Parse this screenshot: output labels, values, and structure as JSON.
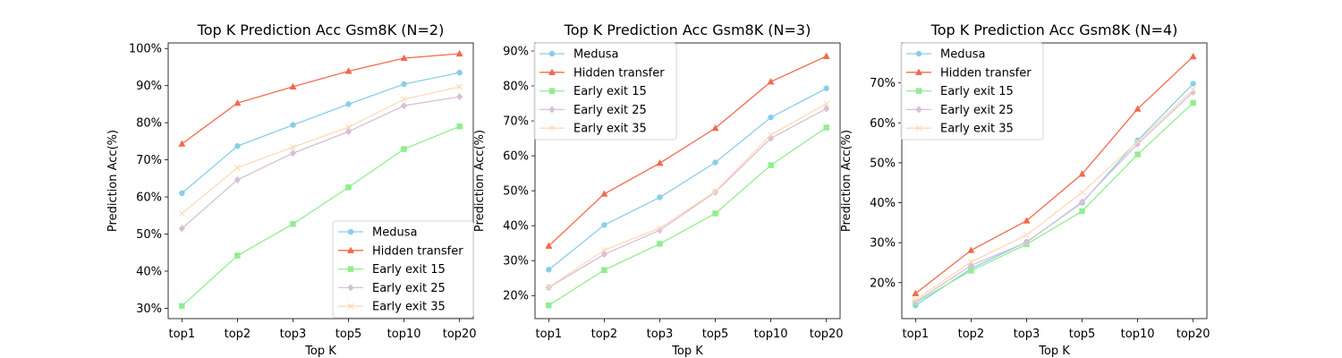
{
  "chart_data": [
    {
      "type": "line",
      "title": "Top K Prediction Acc Gsm8K (N=2)",
      "xlabel": "Top K",
      "ylabel": "Prediction Acc(%)",
      "categories": [
        "top1",
        "top2",
        "top3",
        "top5",
        "top10",
        "top20"
      ],
      "ylim": [
        27.2,
        101.5
      ],
      "yticks": [
        30,
        40,
        50,
        60,
        70,
        80,
        90,
        100
      ],
      "ytick_labels": [
        "30%",
        "40%",
        "50%",
        "60%",
        "70%",
        "80%",
        "90%",
        "100%"
      ],
      "legend_position": "lower-right",
      "series": [
        {
          "name": "Medusa",
          "values": [
            61.0,
            73.7,
            79.4,
            85.0,
            90.4,
            93.5
          ]
        },
        {
          "name": "Hidden transfer",
          "values": [
            74.3,
            85.3,
            89.7,
            93.9,
            97.4,
            98.6
          ]
        },
        {
          "name": "Early exit 15",
          "values": [
            30.6,
            44.2,
            52.7,
            62.6,
            72.9,
            79.0
          ]
        },
        {
          "name": "Early exit 25",
          "values": [
            51.5,
            64.6,
            71.8,
            77.6,
            84.6,
            87.0
          ]
        },
        {
          "name": "Early exit 35",
          "values": [
            55.5,
            67.9,
            73.4,
            78.8,
            86.3,
            89.7
          ]
        }
      ]
    },
    {
      "type": "line",
      "title": "Top K Prediction Acc Gsm8K (N=3)",
      "xlabel": "Top K",
      "ylabel": "Prediction Acc(%)",
      "categories": [
        "top1",
        "top2",
        "top3",
        "top5",
        "top10",
        "top20"
      ],
      "ylim": [
        13.4,
        92.3
      ],
      "yticks": [
        20,
        30,
        40,
        50,
        60,
        70,
        80,
        90
      ],
      "ytick_labels": [
        "20%",
        "30%",
        "40%",
        "50%",
        "60%",
        "70%",
        "80%",
        "90%"
      ],
      "legend_position": "upper-left",
      "series": [
        {
          "name": "Medusa",
          "values": [
            27.4,
            40.2,
            48.1,
            58.1,
            71.0,
            79.3
          ]
        },
        {
          "name": "Hidden transfer",
          "values": [
            34.2,
            49.1,
            57.9,
            67.9,
            81.2,
            88.5
          ]
        },
        {
          "name": "Early exit 15",
          "values": [
            17.2,
            27.3,
            34.8,
            43.5,
            57.3,
            68.1
          ]
        },
        {
          "name": "Early exit 25",
          "values": [
            22.3,
            31.8,
            38.7,
            49.6,
            65.0,
            73.5
          ]
        },
        {
          "name": "Early exit 35",
          "values": [
            22.4,
            33.0,
            39.3,
            49.8,
            66.0,
            74.9
          ]
        }
      ]
    },
    {
      "type": "line",
      "title": "Top K Prediction Acc Gsm8K (N=4)",
      "xlabel": "Top K",
      "ylabel": "Prediction Acc(%)",
      "categories": [
        "top1",
        "top2",
        "top3",
        "top5",
        "top10",
        "top20"
      ],
      "ylim": [
        11.0,
        80.0
      ],
      "yticks": [
        20,
        30,
        40,
        50,
        60,
        70
      ],
      "ytick_labels": [
        "20%",
        "30%",
        "40%",
        "50%",
        "60%",
        "70%"
      ],
      "legend_position": "upper-left",
      "series": [
        {
          "name": "Medusa",
          "values": [
            14.3,
            23.5,
            30.2,
            40.0,
            55.6,
            69.8
          ]
        },
        {
          "name": "Hidden transfer",
          "values": [
            17.3,
            28.1,
            35.5,
            47.2,
            63.5,
            76.6
          ]
        },
        {
          "name": "Early exit 15",
          "values": [
            15.0,
            23.0,
            29.6,
            37.9,
            52.1,
            65.0
          ]
        },
        {
          "name": "Early exit 25",
          "values": [
            15.2,
            24.3,
            30.1,
            40.2,
            54.7,
            67.7
          ]
        },
        {
          "name": "Early exit 35",
          "values": [
            15.7,
            25.2,
            31.9,
            42.6,
            55.3,
            68.3
          ]
        }
      ]
    }
  ],
  "series_styles": [
    {
      "color": "#87CEEB",
      "marker": "circle"
    },
    {
      "color": "#F4684C",
      "marker": "triangle"
    },
    {
      "color": "#90EE90",
      "marker": "square"
    },
    {
      "color": "#D8BFD8",
      "marker": "diamond"
    },
    {
      "color": "#FFDAB9",
      "marker": "x"
    }
  ]
}
